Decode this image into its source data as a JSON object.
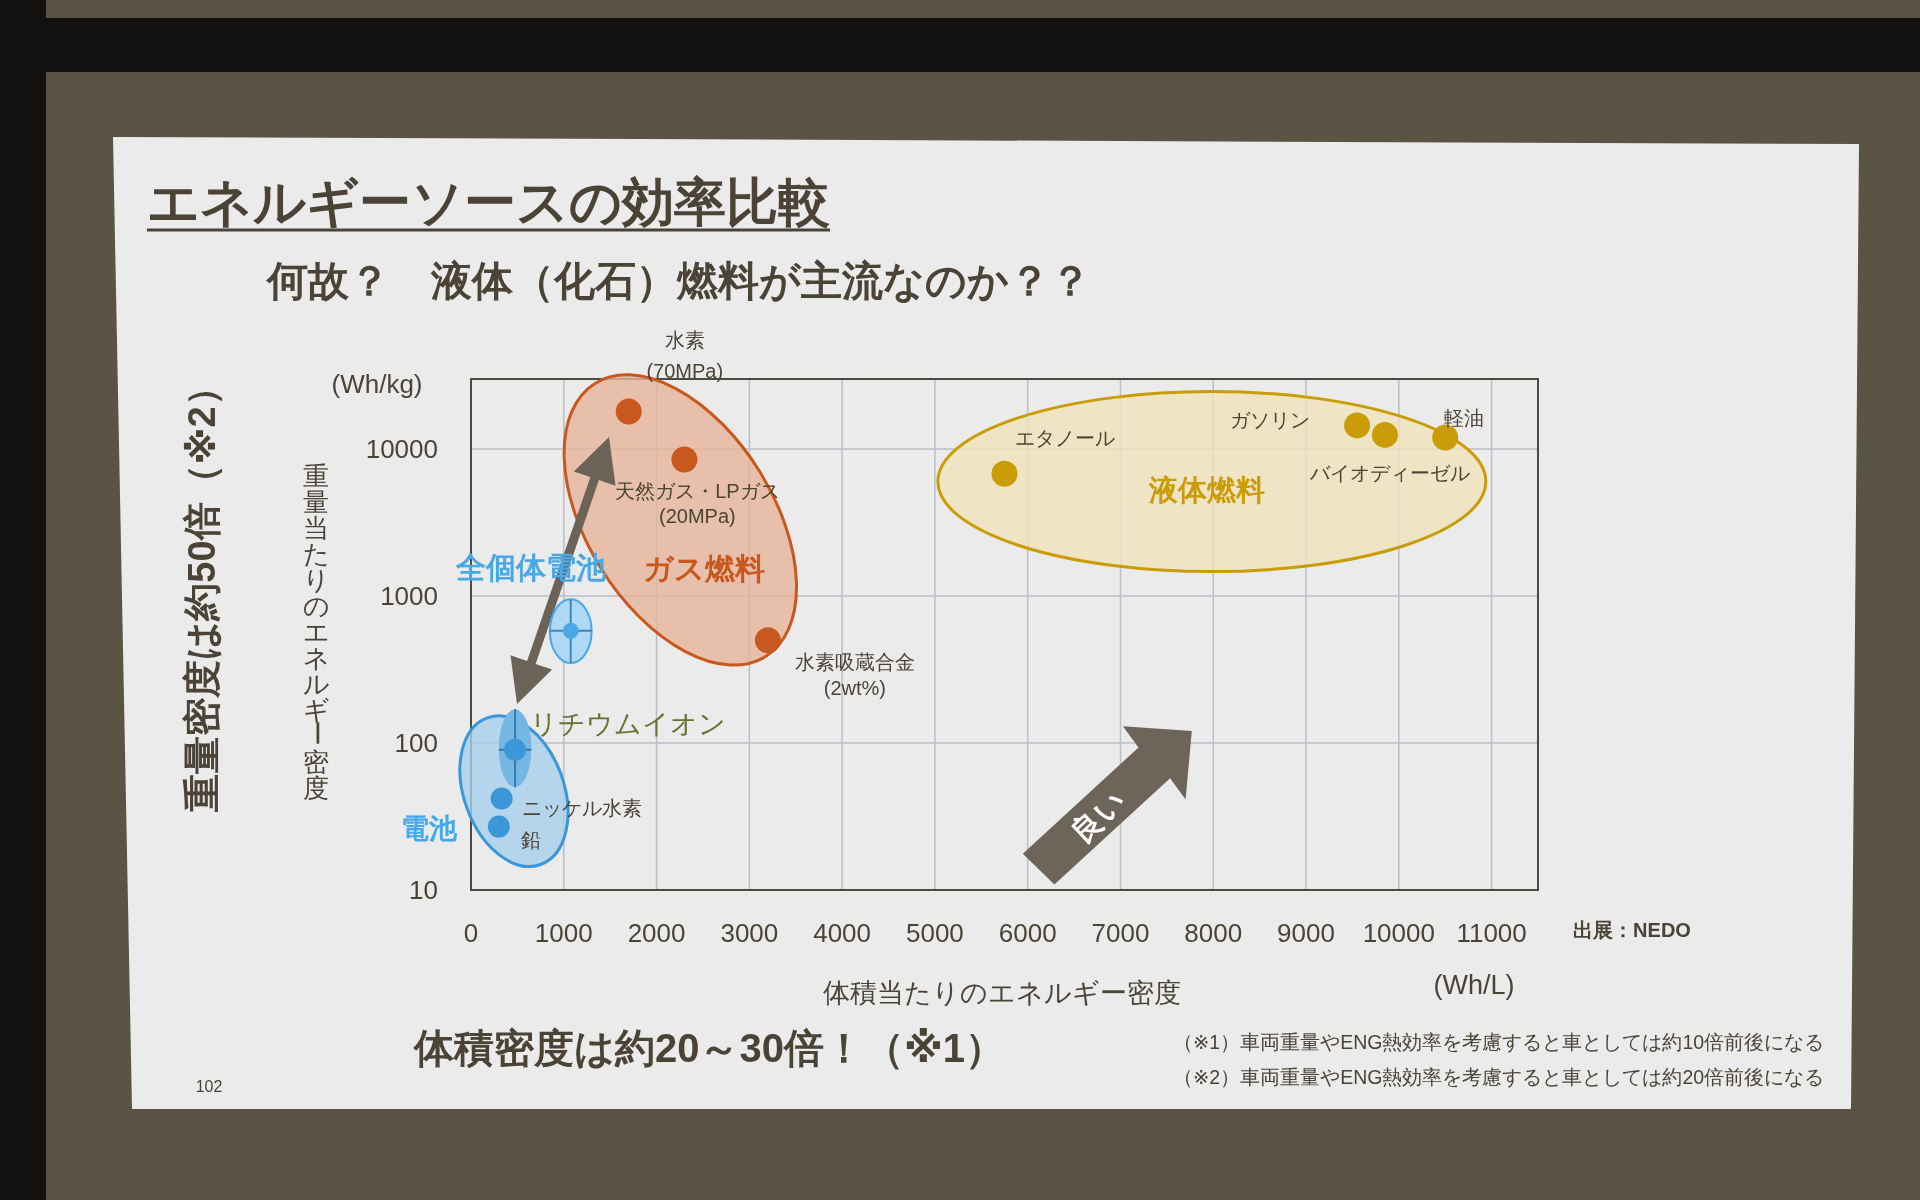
{
  "chart_data": {
    "type": "scatter",
    "title": "エネルギーソースの効率比較",
    "subtitle": "何故？　液体（化石）燃料が主流なのか？？",
    "xlabel": "体積当たりのエネルギー密度",
    "ylabel": "重量当たりのエネルギー密度",
    "xlim": [
      0,
      11500
    ],
    "xticks": [
      0,
      1000,
      2000,
      3000,
      4000,
      5000,
      6000,
      7000,
      8000,
      9000,
      10000,
      11000
    ],
    "ylim": [
      10,
      30000
    ],
    "yticks": [
      10,
      100,
      1000,
      10000
    ],
    "log": "y",
    "grid": true,
    "marker": "circle",
    "series": [
      {
        "name": "ガス燃料",
        "color": "#c8581e",
        "x": [
          1700,
          2300,
          3200
        ],
        "values": [
          18000,
          8500,
          500
        ]
      },
      {
        "name": "液体燃料",
        "color": "#c99c08",
        "x": [
          5750,
          9550,
          9850,
          10500
        ],
        "values": [
          6800,
          14500,
          12500,
          12000
        ]
      },
      {
        "name": "電池",
        "color": "#3b97d8",
        "x": [
          475,
          330,
          300
        ],
        "values": [
          90,
          42,
          27
        ],
        "errors": [
          [
            50,
            170
          ],
          null,
          null
        ],
        "xerrors": [
          [
            300,
            650
          ],
          null,
          null
        ]
      },
      {
        "name": "全個体電池",
        "color": "#4aa8e6",
        "x": [
          1075
        ],
        "values": [
          580
        ],
        "errors": [
          [
            350,
            950
          ]
        ],
        "xerrors": [
          [
            850,
            1300
          ]
        ]
      }
    ],
    "annotations": [
      "(Wh/kg)",
      "(Wh/L)",
      "出展：NEDO",
      "重量密度は約50倍（※2）",
      "体積密度は約20～30倍！（※1）",
      "（※1）車両重量やENG熱効率を考慮すると車としては約10倍前後になる",
      "（※2）車両重量やENG熱効率を考慮すると車としては約20倍前後になる",
      "102",
      "良い",
      {
        "text": "水素\n(70MPa)",
        "x": 1700,
        "y": 18000
      },
      {
        "text": "天然ガス・LPガス\n(20MPa)",
        "x": 2300,
        "y": 8500
      },
      {
        "text": "水素吸蔵合金\n(2wt%)",
        "x": 3200,
        "y": 500
      },
      {
        "text": "エタノール",
        "x": 5750,
        "y": 6800
      },
      {
        "text": "ガソリン",
        "x": 9550,
        "y": 14500
      },
      {
        "text": "バイオディーゼル",
        "x": 9850,
        "y": 12500
      },
      {
        "text": "軽油",
        "x": 10500,
        "y": 12000
      },
      {
        "text": "リチウムイオン",
        "x": 475,
        "y": 90
      },
      {
        "text": "ニッケル水素",
        "x": 330,
        "y": 42
      },
      {
        "text": "鉛",
        "x": 300,
        "y": 27
      }
    ]
  }
}
